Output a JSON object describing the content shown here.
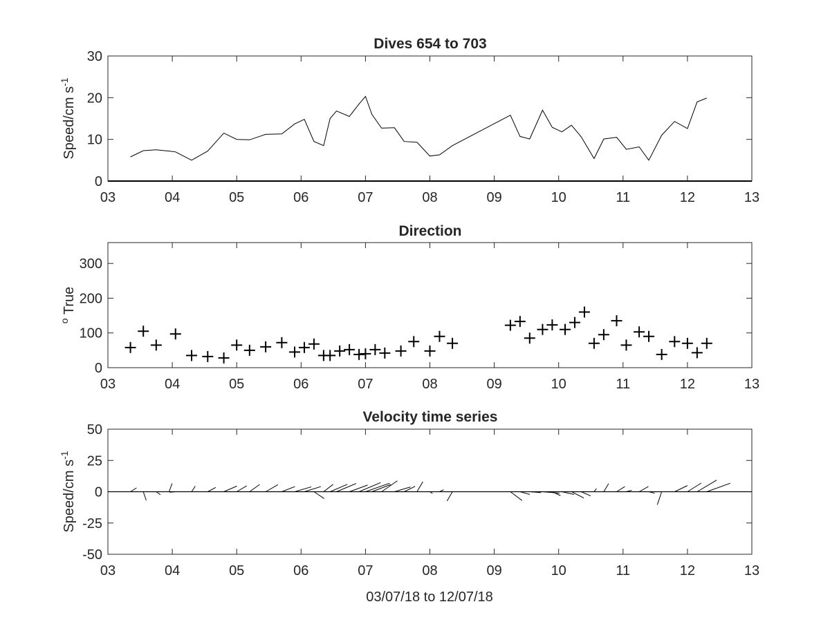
{
  "figure": {
    "xlabel": "03/07/18 to 12/07/18",
    "x_tick_labels": [
      "03",
      "04",
      "05",
      "06",
      "07",
      "08",
      "09",
      "10",
      "11",
      "12",
      "13"
    ]
  },
  "chart_data": [
    {
      "type": "line",
      "title": "Dives 654 to 703",
      "ylabel": "Speed/cm s",
      "ylabel_superscript": "-1",
      "xlim": [
        3,
        13
      ],
      "ylim": [
        0,
        30
      ],
      "y_ticks": [
        0,
        10,
        20,
        30
      ],
      "series": [
        {
          "x": [
            3.35,
            3.55,
            3.75,
            3.95,
            4.05,
            4.3,
            4.55,
            4.8,
            5.0,
            5.2,
            5.45,
            5.7,
            5.9,
            6.05,
            6.2,
            6.35,
            6.45,
            6.55,
            6.75,
            6.9,
            7.0,
            7.1,
            7.25,
            7.45,
            7.6,
            7.8,
            8.0,
            8.15,
            8.35,
            9.25,
            9.4,
            9.55,
            9.75,
            9.9,
            10.05,
            10.2,
            10.35,
            10.55,
            10.7,
            10.9,
            11.05,
            11.25,
            11.4,
            11.6,
            11.8,
            12.0,
            12.15,
            12.3
          ],
          "values": [
            5.8,
            7.3,
            7.5,
            7.2,
            7.0,
            5.0,
            7.2,
            11.5,
            10.0,
            9.9,
            11.2,
            11.3,
            13.7,
            14.8,
            9.5,
            8.5,
            15.0,
            16.8,
            15.5,
            18.5,
            20.3,
            16.0,
            12.7,
            12.8,
            9.5,
            9.3,
            6.0,
            6.3,
            8.5,
            15.8,
            10.7,
            10.1,
            17.0,
            12.9,
            11.8,
            13.4,
            10.6,
            5.4,
            10.1,
            10.5,
            7.6,
            8.2,
            5.0,
            11.0,
            14.3,
            12.6,
            19.0,
            19.9
          ]
        }
      ]
    },
    {
      "type": "scatter",
      "title": "Direction",
      "ylabel": "True",
      "ylabel_prefix": "o",
      "xlim": [
        3,
        13
      ],
      "ylim": [
        0,
        360
      ],
      "y_ticks": [
        0,
        100,
        200,
        300
      ],
      "marker": "+",
      "series": [
        {
          "x": [
            3.35,
            3.55,
            3.75,
            4.05,
            4.3,
            4.55,
            4.8,
            5.0,
            5.2,
            5.45,
            5.7,
            5.9,
            6.05,
            6.2,
            6.35,
            6.45,
            6.6,
            6.75,
            6.9,
            7.0,
            7.15,
            7.3,
            7.55,
            7.75,
            8.0,
            8.15,
            8.35,
            9.25,
            9.4,
            9.55,
            9.75,
            9.9,
            10.1,
            10.25,
            10.4,
            10.55,
            10.7,
            10.9,
            11.05,
            11.25,
            11.4,
            11.6,
            11.8,
            12.0,
            12.15,
            12.3
          ],
          "values": [
            58,
            105,
            65,
            97,
            35,
            32,
            28,
            65,
            50,
            60,
            72,
            45,
            58,
            68,
            35,
            35,
            48,
            52,
            38,
            40,
            52,
            42,
            48,
            75,
            48,
            90,
            70,
            122,
            133,
            85,
            110,
            123,
            110,
            130,
            160,
            70,
            95,
            135,
            65,
            103,
            90,
            38,
            75,
            70,
            43,
            70
          ]
        }
      ]
    },
    {
      "type": "line",
      "title": "Velocity time series",
      "ylabel": "Speed/cm s",
      "ylabel_superscript": "-1",
      "xlim": [
        3,
        13
      ],
      "ylim": [
        -50,
        50
      ],
      "y_ticks": [
        -50,
        -25,
        0,
        25,
        50
      ],
      "note": "stick plot",
      "series": [
        {
          "x": [
            3.35,
            3.55,
            3.75,
            3.95,
            4.05,
            4.3,
            4.55,
            4.8,
            5.0,
            5.2,
            5.45,
            5.7,
            5.9,
            6.05,
            6.2,
            6.35,
            6.45,
            6.55,
            6.75,
            6.9,
            7.0,
            7.1,
            7.25,
            7.45,
            7.6,
            7.8,
            8.0,
            8.15,
            8.35,
            9.25,
            9.4,
            9.55,
            9.75,
            9.9,
            10.05,
            10.2,
            10.35,
            10.55,
            10.7,
            10.9,
            11.05,
            11.25,
            11.4,
            11.6,
            11.8,
            12.0,
            12.15,
            12.3
          ],
          "u": [
            4.9,
            2.3,
            3.4,
            2.4,
            -4.7,
            2.9,
            6.4,
            10.4,
            8.0,
            8.1,
            9.8,
            10.5,
            13.3,
            13.2,
            8.2,
            7.6,
            13.8,
            15.7,
            14.6,
            17.2,
            19.3,
            15.1,
            12.6,
            12.8,
            8.8,
            4.7,
            2.1,
            3.3,
            -4.3,
            9.3,
            7.8,
            9.1,
            13.5,
            6.6,
            9.7,
            9.8,
            7.5,
            1.9,
            3.9,
            6.6,
            4.3,
            7.4,
            4.7,
            -3.5,
            10.3,
            11.0,
            15.6,
            18.8
          ],
          "v": [
            3.1,
            -6.9,
            -2.4,
            6.6,
            -0.4,
            4.4,
            3.4,
            4.5,
            4.7,
            5.8,
            5.6,
            4.1,
            3.9,
            4.1,
            -5.5,
            5.9,
            5.9,
            6.6,
            5.3,
            7.3,
            6.8,
            5.8,
            8.7,
            3.8,
            4.3,
            8.0,
            -1.4,
            1.6,
            -7.4,
            -7.0,
            -2.2,
            -0.7,
            -1.2,
            -3.1,
            -2.2,
            -5.0,
            -3.3,
            2.5,
            6.5,
            4.1,
            1.2,
            4.2,
            -1.2,
            -10.4,
            4.9,
            6.9,
            9.3,
            6.8
          ]
        }
      ]
    }
  ]
}
